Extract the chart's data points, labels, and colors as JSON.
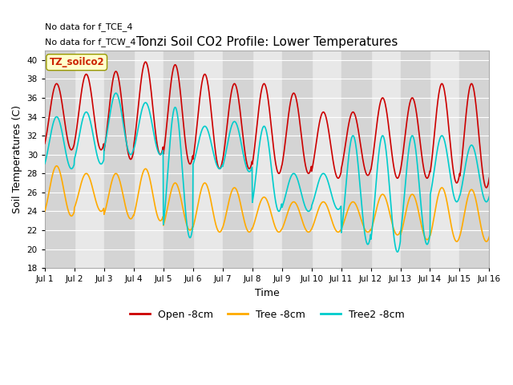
{
  "title": "Tonzi Soil CO2 Profile: Lower Temperatures",
  "xlabel": "Time",
  "ylabel": "Soil Temperatures (C)",
  "ylim": [
    18,
    41
  ],
  "yticks": [
    18,
    20,
    22,
    24,
    26,
    28,
    30,
    32,
    34,
    36,
    38,
    40
  ],
  "xlim": [
    0,
    15
  ],
  "xtick_labels": [
    "Jul 1",
    "Jul 2",
    "Jul 3",
    "Jul 4",
    "Jul 5",
    "Jul 6",
    "Jul 7",
    "Jul 8",
    "Jul 9",
    "Jul 10",
    "Jul 11",
    "Jul 12",
    "Jul 13",
    "Jul 14",
    "Jul 15",
    "Jul 16"
  ],
  "xtick_positions": [
    0,
    1,
    2,
    3,
    4,
    5,
    6,
    7,
    8,
    9,
    10,
    11,
    12,
    13,
    14,
    15
  ],
  "series_colors": [
    "#cc0000",
    "#ffaa00",
    "#00cccc"
  ],
  "series_labels": [
    "Open -8cm",
    "Tree -8cm",
    "Tree2 -8cm"
  ],
  "fig_bg": "#ffffff",
  "plot_bg": "#e8e8e8",
  "stripe_color": "#d4d4d4",
  "grid_color": "#ffffff",
  "annotations": [
    "No data for f_TCE_4",
    "No data for f_TCW_4"
  ],
  "legend_label": "TZ_soilco2",
  "legend_text_color": "#cc2200",
  "legend_box_face": "#ffffcc",
  "legend_box_edge": "#999900"
}
